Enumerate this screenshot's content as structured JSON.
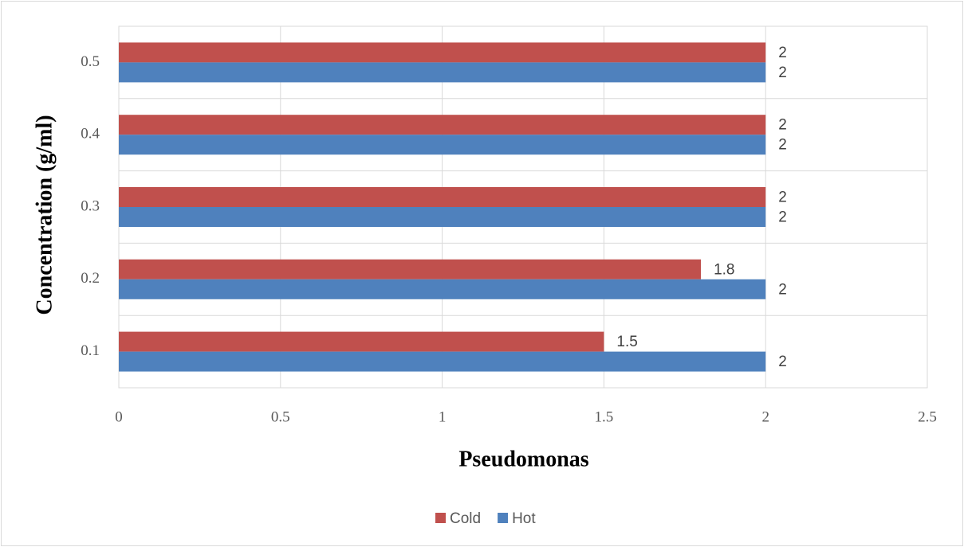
{
  "chart_data": {
    "type": "hbar",
    "categories": [
      "0.1",
      "0.2",
      "0.3",
      "0.4",
      "0.5"
    ],
    "series": [
      {
        "name": "Cold",
        "color": "#c0504d",
        "values": [
          1.5,
          1.8,
          2,
          2,
          2
        ]
      },
      {
        "name": "Hot",
        "color": "#4f81bd",
        "values": [
          2,
          2,
          2,
          2,
          2
        ]
      }
    ],
    "xlabel": "Pseudomonas",
    "ylabel": "Concentration (g/ml)",
    "xlim": [
      0,
      2.5
    ],
    "xticks": [
      0,
      0.5,
      1,
      1.5,
      2,
      2.5
    ],
    "grid": true,
    "legend": "bottom"
  }
}
